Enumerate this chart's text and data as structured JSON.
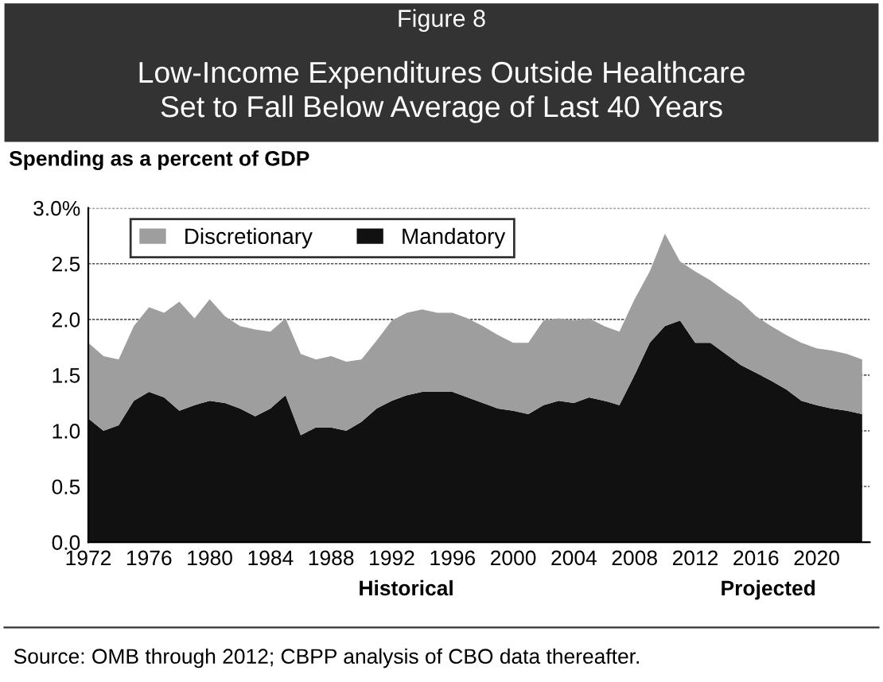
{
  "chart_data": {
    "type": "area",
    "stacked": true,
    "title": "Figure 8",
    "subtitle": "Low-Income Expenditures Outside Healthcare\nSet to Fall Below Average of Last 40 Years",
    "ylabel": "Spending as a percent of GDP",
    "x": [
      1972,
      1973,
      1974,
      1975,
      1976,
      1977,
      1978,
      1979,
      1980,
      1981,
      1982,
      1983,
      1984,
      1985,
      1986,
      1987,
      1988,
      1989,
      1990,
      1991,
      1992,
      1993,
      1994,
      1995,
      1996,
      1997,
      1998,
      1999,
      2000,
      2001,
      2002,
      2003,
      2004,
      2005,
      2006,
      2007,
      2008,
      2009,
      2010,
      2011,
      2012,
      2013,
      2014,
      2015,
      2016,
      2017,
      2018,
      2019,
      2020,
      2021,
      2022,
      2023
    ],
    "series": [
      {
        "name": "Mandatory",
        "color": "#111111",
        "values": [
          1.11,
          1.0,
          1.05,
          1.27,
          1.35,
          1.3,
          1.18,
          1.23,
          1.27,
          1.25,
          1.2,
          1.13,
          1.2,
          1.32,
          0.96,
          1.03,
          1.03,
          1.0,
          1.08,
          1.2,
          1.27,
          1.32,
          1.35,
          1.35,
          1.35,
          1.3,
          1.25,
          1.2,
          1.18,
          1.15,
          1.23,
          1.27,
          1.25,
          1.3,
          1.27,
          1.23,
          1.5,
          1.79,
          1.94,
          1.99,
          1.79,
          1.79,
          1.69,
          1.59,
          1.52,
          1.45,
          1.37,
          1.27,
          1.23,
          1.2,
          1.18,
          1.15
        ]
      },
      {
        "name": "Discretionary",
        "color": "#9e9e9e",
        "values": [
          0.68,
          0.67,
          0.59,
          0.67,
          0.76,
          0.76,
          0.98,
          0.78,
          0.91,
          0.78,
          0.74,
          0.78,
          0.69,
          0.69,
          0.73,
          0.61,
          0.64,
          0.62,
          0.56,
          0.61,
          0.72,
          0.74,
          0.74,
          0.71,
          0.71,
          0.71,
          0.69,
          0.66,
          0.61,
          0.64,
          0.76,
          0.74,
          0.74,
          0.71,
          0.67,
          0.66,
          0.68,
          0.64,
          0.83,
          0.53,
          0.64,
          0.56,
          0.56,
          0.57,
          0.51,
          0.49,
          0.49,
          0.52,
          0.51,
          0.52,
          0.51,
          0.49
        ]
      }
    ],
    "xlim": [
      1972,
      2023.5
    ],
    "xticks": [
      1972,
      1976,
      1980,
      1984,
      1988,
      1992,
      1996,
      2000,
      2004,
      2008,
      2012,
      2016,
      2020
    ],
    "ylim": [
      0,
      3.0
    ],
    "yticks": [
      {
        "value": 0,
        "label": "0.0"
      },
      {
        "value": 0.5,
        "label": "0.5"
      },
      {
        "value": 1.0,
        "label": "1.0"
      },
      {
        "value": 1.5,
        "label": "1.5"
      },
      {
        "value": 2.0,
        "label": "2.0"
      },
      {
        "value": 2.5,
        "label": "2.5"
      },
      {
        "value": 3.0,
        "label": "3.0%"
      }
    ],
    "grid": "y",
    "legend": "top left",
    "annotations": [
      "Historical",
      "Projected",
      "Source: OMB through 2012; CBPP analysis of CBO data thereafter."
    ]
  }
}
